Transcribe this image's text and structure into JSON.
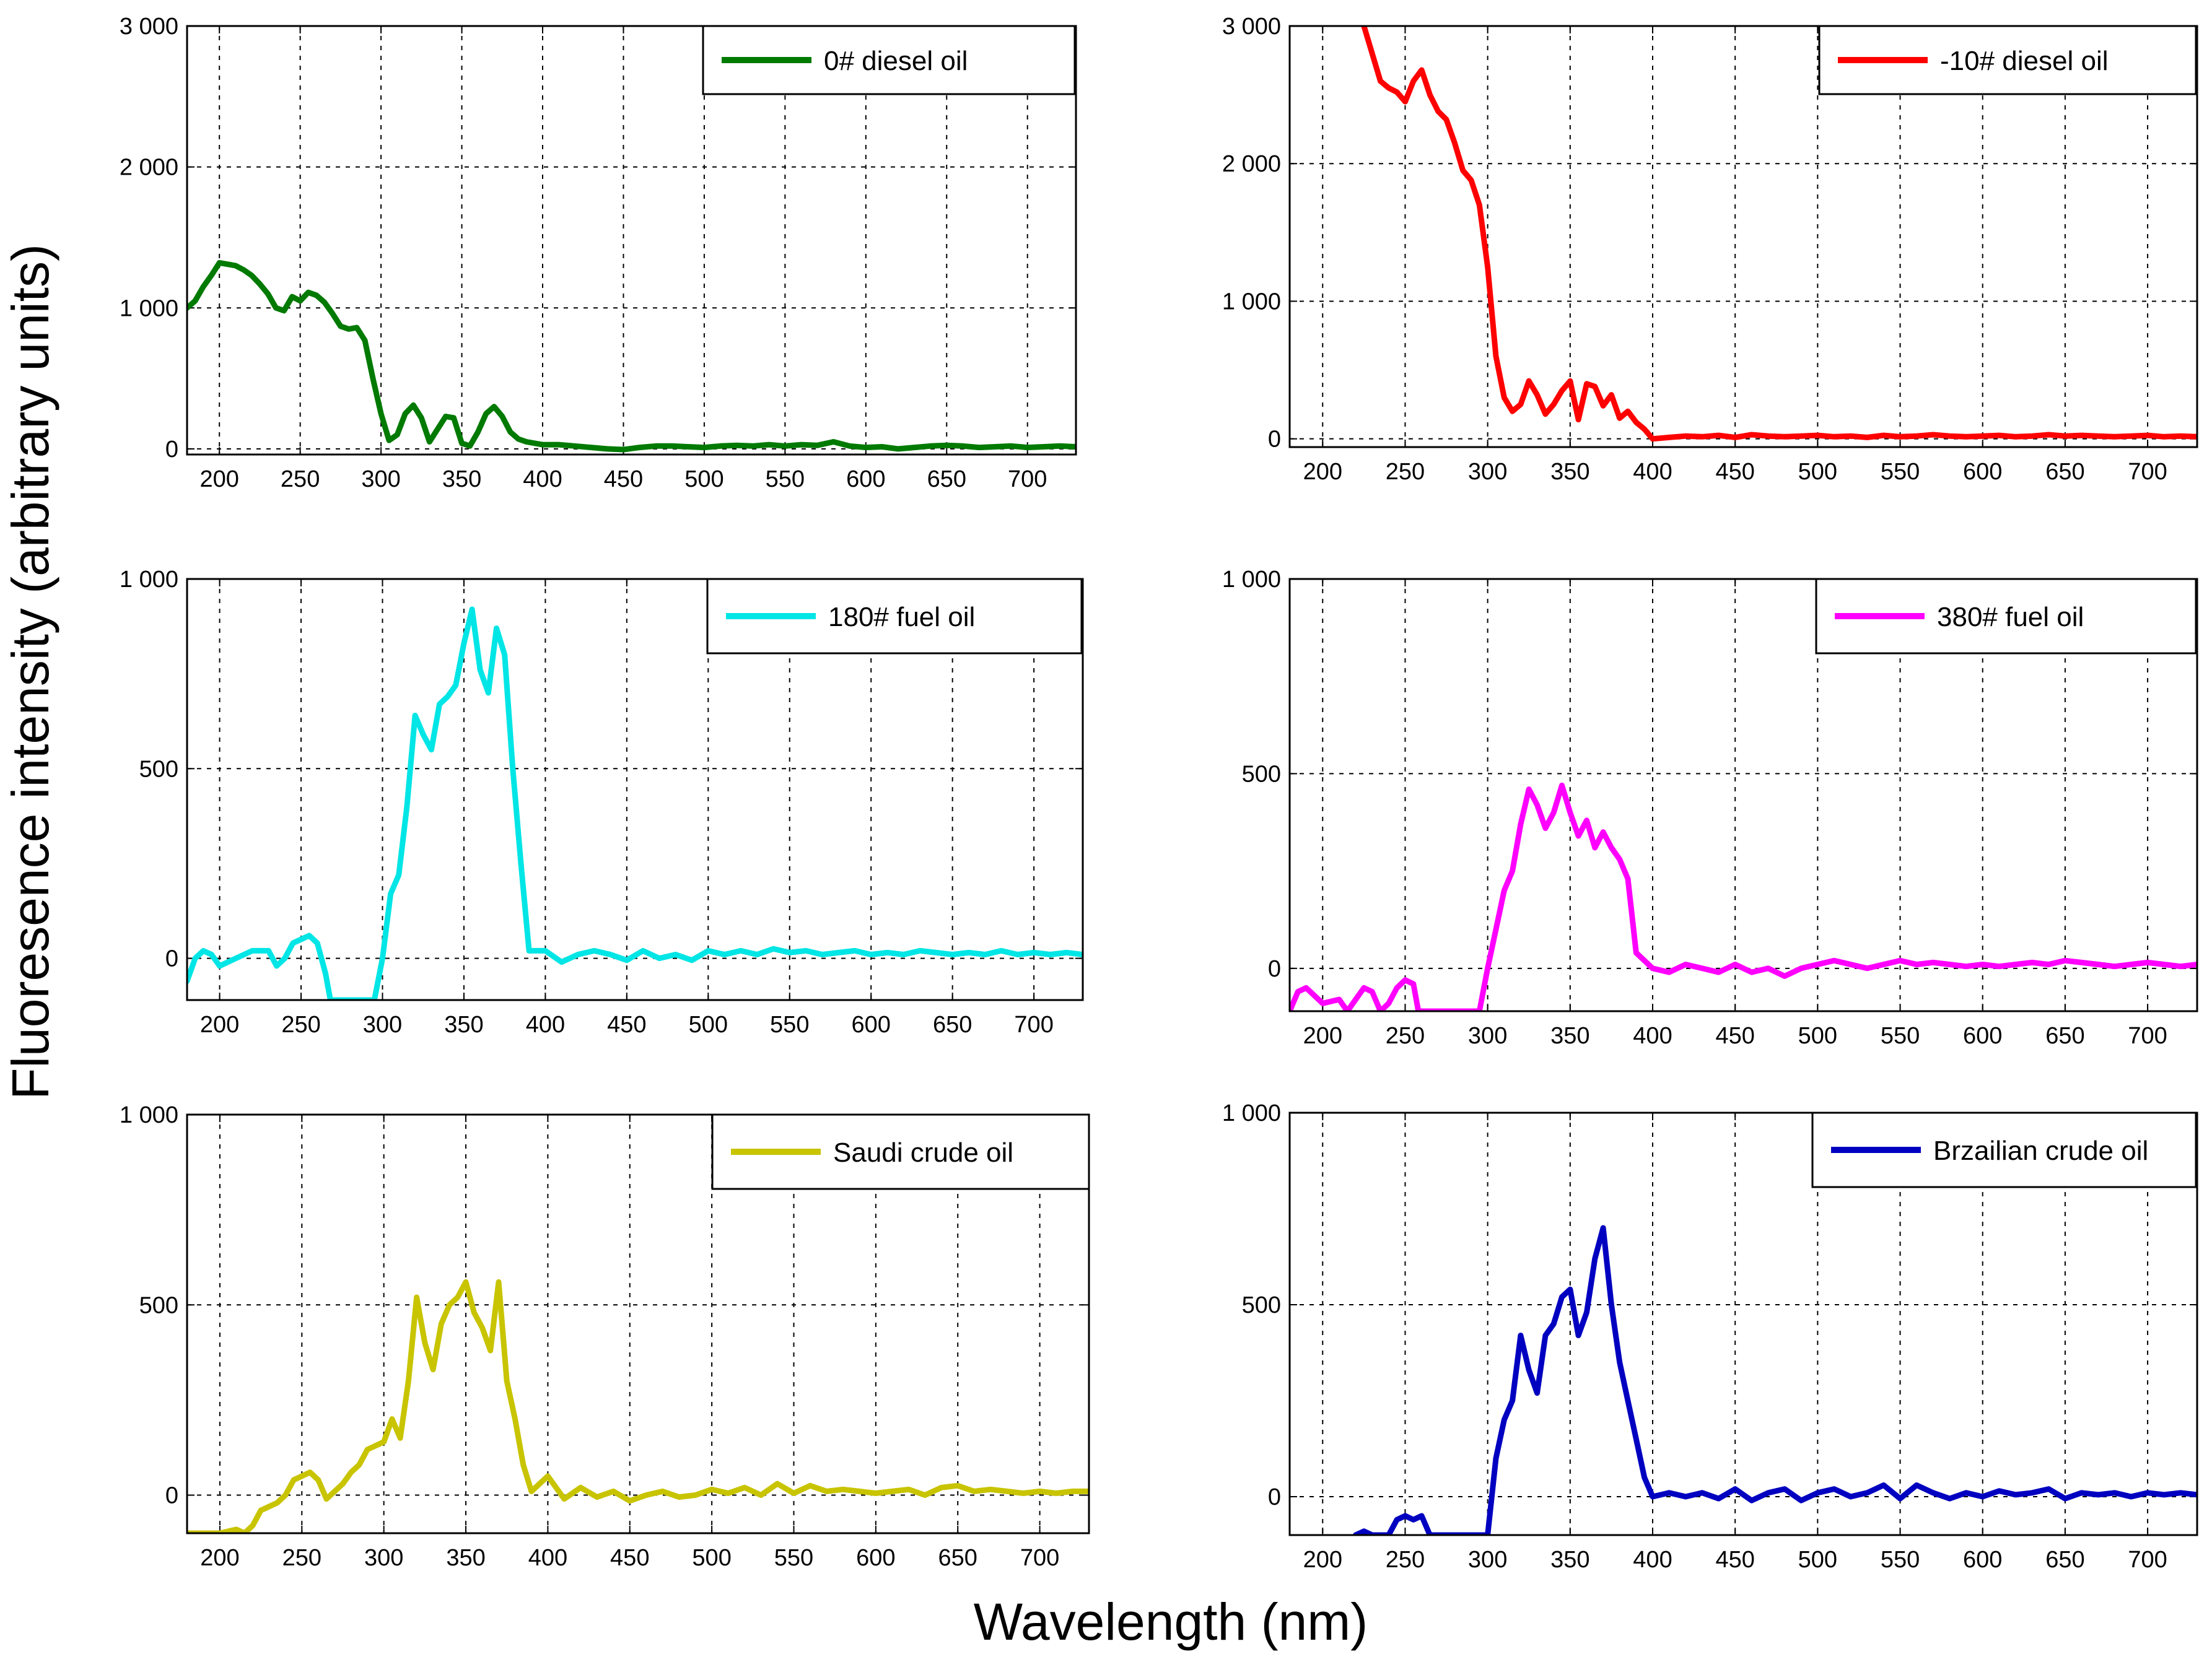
{
  "figure": {
    "ylabel": "Fluoresence intensity (arbitrary units)",
    "xlabel": "Wavelength (nm)"
  },
  "chart_data": [
    {
      "type": "line",
      "panel": "top-left",
      "legend": "0# diesel oil",
      "legend_position": "top-right",
      "color": "#007a00",
      "grid": true,
      "xlim": [
        180,
        730
      ],
      "ylim": [
        -40,
        3000
      ],
      "xticks": [
        200,
        250,
        300,
        350,
        400,
        450,
        500,
        550,
        600,
        650,
        700
      ],
      "yticks": [
        0,
        1000,
        2000,
        3000
      ],
      "ytick_labels": [
        "0",
        "1 000",
        "2 000",
        "3 000"
      ],
      "x": [
        180,
        185,
        190,
        195,
        200,
        205,
        210,
        215,
        220,
        225,
        230,
        235,
        240,
        245,
        250,
        255,
        260,
        265,
        270,
        275,
        280,
        285,
        290,
        295,
        300,
        305,
        310,
        315,
        320,
        325,
        330,
        335,
        340,
        345,
        350,
        355,
        360,
        365,
        370,
        375,
        380,
        385,
        390,
        400,
        410,
        420,
        430,
        440,
        450,
        460,
        470,
        480,
        490,
        500,
        510,
        520,
        530,
        540,
        550,
        560,
        570,
        580,
        590,
        600,
        610,
        620,
        630,
        640,
        650,
        660,
        670,
        680,
        690,
        700,
        710,
        720,
        730
      ],
      "y": [
        1000,
        1050,
        1150,
        1230,
        1320,
        1310,
        1300,
        1270,
        1230,
        1170,
        1100,
        1000,
        980,
        1080,
        1050,
        1110,
        1090,
        1040,
        960,
        870,
        850,
        860,
        770,
        500,
        250,
        60,
        100,
        250,
        310,
        220,
        50,
        140,
        230,
        220,
        40,
        20,
        120,
        250,
        300,
        230,
        120,
        70,
        50,
        30,
        30,
        20,
        10,
        0,
        -5,
        10,
        20,
        20,
        15,
        10,
        20,
        25,
        20,
        30,
        20,
        30,
        25,
        50,
        20,
        10,
        15,
        0,
        10,
        20,
        25,
        20,
        10,
        15,
        20,
        10,
        15,
        20,
        15
      ]
    },
    {
      "type": "line",
      "panel": "top-right",
      "legend": "-10# diesel oil",
      "legend_position": "top-right",
      "color": "#ff0000",
      "grid": true,
      "xlim": [
        180,
        730
      ],
      "ylim": [
        -60,
        3000
      ],
      "xticks": [
        200,
        250,
        300,
        350,
        400,
        450,
        500,
        550,
        600,
        650,
        700
      ],
      "yticks": [
        0,
        1000,
        2000,
        3000
      ],
      "ytick_labels": [
        "0",
        "1 000",
        "2 000",
        "3 000"
      ],
      "x": [
        225,
        230,
        235,
        240,
        245,
        250,
        255,
        260,
        265,
        270,
        275,
        280,
        285,
        290,
        295,
        300,
        305,
        310,
        315,
        320,
        325,
        330,
        335,
        340,
        345,
        350,
        355,
        360,
        365,
        370,
        375,
        380,
        385,
        390,
        395,
        400,
        410,
        420,
        430,
        440,
        450,
        460,
        470,
        480,
        490,
        500,
        510,
        520,
        530,
        540,
        550,
        560,
        570,
        580,
        590,
        600,
        610,
        620,
        630,
        640,
        650,
        660,
        670,
        680,
        690,
        700,
        710,
        720,
        730
      ],
      "y": [
        3000,
        2800,
        2600,
        2550,
        2520,
        2450,
        2600,
        2680,
        2500,
        2380,
        2320,
        2150,
        1950,
        1880,
        1700,
        1250,
        600,
        300,
        200,
        250,
        420,
        320,
        180,
        250,
        350,
        420,
        140,
        400,
        380,
        240,
        320,
        150,
        200,
        120,
        70,
        0,
        10,
        20,
        15,
        25,
        10,
        30,
        20,
        15,
        20,
        25,
        15,
        20,
        10,
        25,
        15,
        20,
        30,
        20,
        15,
        20,
        25,
        15,
        20,
        30,
        20,
        25,
        20,
        15,
        20,
        25,
        15,
        20,
        15
      ]
    },
    {
      "type": "line",
      "panel": "middle-left",
      "legend": "180# fuel oil",
      "legend_position": "top-right",
      "color": "#00e5e5",
      "grid": true,
      "xlim": [
        180,
        730
      ],
      "ylim": [
        -110,
        1000
      ],
      "xticks": [
        200,
        250,
        300,
        350,
        400,
        450,
        500,
        550,
        600,
        650,
        700
      ],
      "yticks": [
        0,
        500,
        1000
      ],
      "ytick_labels": [
        "0",
        "500",
        "1 000"
      ],
      "x": [
        180,
        185,
        190,
        195,
        200,
        210,
        220,
        230,
        235,
        240,
        245,
        250,
        255,
        260,
        265,
        268,
        272,
        280,
        290,
        295,
        300,
        305,
        310,
        315,
        320,
        325,
        330,
        335,
        340,
        345,
        350,
        355,
        360,
        365,
        370,
        375,
        380,
        385,
        390,
        400,
        410,
        420,
        430,
        440,
        450,
        460,
        470,
        480,
        490,
        500,
        510,
        520,
        530,
        540,
        550,
        560,
        570,
        580,
        590,
        600,
        610,
        620,
        630,
        640,
        650,
        660,
        670,
        680,
        690,
        700,
        710,
        720,
        730
      ],
      "y": [
        -60,
        0,
        20,
        10,
        -20,
        0,
        20,
        20,
        -20,
        0,
        40,
        50,
        60,
        40,
        -40,
        -110,
        -110,
        -110,
        -110,
        -110,
        0,
        170,
        220,
        400,
        640,
        590,
        550,
        670,
        690,
        720,
        830,
        920,
        760,
        700,
        870,
        800,
        500,
        250,
        20,
        20,
        -10,
        10,
        20,
        10,
        -5,
        20,
        0,
        10,
        -5,
        20,
        10,
        20,
        10,
        25,
        15,
        20,
        10,
        15,
        20,
        10,
        15,
        10,
        20,
        15,
        10,
        15,
        10,
        20,
        10,
        15,
        10,
        15,
        10
      ]
    },
    {
      "type": "line",
      "panel": "middle-right",
      "legend": "380# fuel oil",
      "legend_position": "top-right",
      "color": "#ff00ff",
      "grid": true,
      "xlim": [
        180,
        730
      ],
      "ylim": [
        -110,
        1000
      ],
      "xticks": [
        200,
        250,
        300,
        350,
        400,
        450,
        500,
        550,
        600,
        650,
        700
      ],
      "yticks": [
        0,
        500,
        1000
      ],
      "ytick_labels": [
        "0",
        "500",
        "1 000"
      ],
      "x": [
        180,
        185,
        190,
        200,
        210,
        215,
        220,
        225,
        230,
        235,
        240,
        245,
        250,
        255,
        258,
        262,
        270,
        280,
        290,
        295,
        300,
        305,
        310,
        315,
        320,
        325,
        330,
        335,
        340,
        345,
        350,
        355,
        360,
        365,
        370,
        375,
        380,
        385,
        390,
        400,
        410,
        420,
        430,
        440,
        450,
        460,
        470,
        480,
        490,
        500,
        510,
        520,
        530,
        540,
        550,
        560,
        570,
        580,
        590,
        600,
        610,
        620,
        630,
        640,
        650,
        660,
        670,
        680,
        690,
        700,
        710,
        720,
        730
      ],
      "y": [
        -110,
        -60,
        -50,
        -90,
        -80,
        -110,
        -80,
        -50,
        -60,
        -110,
        -90,
        -50,
        -30,
        -40,
        -110,
        -110,
        -110,
        -110,
        -110,
        -110,
        0,
        100,
        200,
        250,
        370,
        460,
        420,
        360,
        400,
        470,
        400,
        340,
        380,
        310,
        350,
        310,
        280,
        230,
        40,
        0,
        -10,
        10,
        0,
        -10,
        10,
        -10,
        0,
        -20,
        0,
        10,
        20,
        10,
        0,
        10,
        20,
        10,
        15,
        10,
        5,
        10,
        5,
        10,
        15,
        10,
        20,
        15,
        10,
        5,
        10,
        15,
        10,
        5,
        10
      ]
    },
    {
      "type": "line",
      "panel": "bottom-left",
      "legend": "Saudi crude oil",
      "legend_position": "top-right",
      "color": "#c8c400",
      "grid": true,
      "xlim": [
        180,
        730
      ],
      "ylim": [
        -100,
        1000
      ],
      "xticks": [
        200,
        250,
        300,
        350,
        400,
        450,
        500,
        550,
        600,
        650,
        700
      ],
      "yticks": [
        0,
        500,
        1000
      ],
      "ytick_labels": [
        "0",
        "500",
        "1 000"
      ],
      "x": [
        180,
        190,
        200,
        210,
        215,
        220,
        225,
        230,
        235,
        240,
        245,
        250,
        255,
        260,
        265,
        270,
        275,
        280,
        285,
        290,
        295,
        300,
        305,
        310,
        315,
        320,
        325,
        330,
        335,
        340,
        345,
        350,
        355,
        360,
        365,
        370,
        375,
        380,
        385,
        390,
        400,
        410,
        420,
        430,
        440,
        450,
        460,
        470,
        480,
        490,
        500,
        510,
        520,
        530,
        540,
        550,
        560,
        570,
        580,
        590,
        600,
        610,
        620,
        630,
        640,
        650,
        660,
        670,
        680,
        690,
        700,
        710,
        720,
        730
      ],
      "y": [
        -100,
        -100,
        -100,
        -90,
        -100,
        -80,
        -40,
        -30,
        -20,
        0,
        40,
        50,
        60,
        40,
        -10,
        10,
        30,
        60,
        80,
        120,
        130,
        140,
        200,
        150,
        300,
        520,
        400,
        330,
        450,
        500,
        520,
        560,
        480,
        440,
        380,
        560,
        300,
        200,
        80,
        10,
        50,
        -10,
        20,
        -5,
        10,
        -15,
        0,
        10,
        -5,
        0,
        15,
        5,
        20,
        0,
        30,
        5,
        25,
        10,
        15,
        10,
        5,
        10,
        15,
        0,
        20,
        25,
        10,
        15,
        10,
        5,
        10,
        5,
        10,
        10
      ]
    },
    {
      "type": "line",
      "panel": "bottom-right",
      "legend": "Brzailian crude oil",
      "legend_position": "top-right",
      "color": "#0000c0",
      "grid": true,
      "xlim": [
        180,
        730
      ],
      "ylim": [
        -100,
        1000
      ],
      "xticks": [
        200,
        250,
        300,
        350,
        400,
        450,
        500,
        550,
        600,
        650,
        700
      ],
      "yticks": [
        0,
        500,
        1000
      ],
      "ytick_labels": [
        "0",
        "500",
        "1 000"
      ],
      "x": [
        220,
        225,
        230,
        235,
        240,
        245,
        250,
        255,
        260,
        265,
        270,
        280,
        290,
        295,
        300,
        305,
        310,
        315,
        320,
        325,
        330,
        335,
        340,
        345,
        350,
        355,
        360,
        365,
        370,
        375,
        380,
        385,
        390,
        395,
        400,
        410,
        420,
        430,
        440,
        450,
        460,
        470,
        480,
        490,
        500,
        510,
        520,
        530,
        540,
        550,
        560,
        570,
        580,
        590,
        600,
        610,
        620,
        630,
        640,
        650,
        660,
        670,
        680,
        690,
        700,
        710,
        720,
        730
      ],
      "y": [
        -100,
        -90,
        -100,
        -100,
        -100,
        -60,
        -50,
        -60,
        -50,
        -100,
        -100,
        -100,
        -100,
        -100,
        -100,
        100,
        200,
        250,
        420,
        330,
        270,
        420,
        450,
        520,
        540,
        420,
        480,
        620,
        700,
        500,
        350,
        250,
        150,
        50,
        0,
        10,
        0,
        10,
        -5,
        20,
        -10,
        10,
        20,
        -10,
        10,
        20,
        0,
        10,
        30,
        -5,
        30,
        10,
        -5,
        10,
        0,
        15,
        5,
        10,
        20,
        -5,
        10,
        5,
        10,
        0,
        10,
        5,
        10,
        5
      ]
    }
  ]
}
